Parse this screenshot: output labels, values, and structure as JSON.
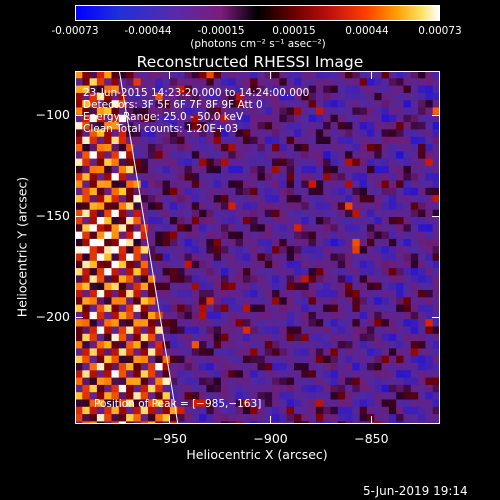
{
  "colorbar": {
    "tick_labels": [
      "-0.00073",
      "-0.00044",
      "-0.00015",
      "0.00015",
      "0.00044",
      "0.00073"
    ],
    "units": "(photons cm⁻² s⁻¹ asec⁻²)",
    "colors": [
      "#0000ff",
      "#7a1d7a",
      "#000000",
      "#c01010",
      "#ff9a00",
      "#ffffff"
    ]
  },
  "chart_data": {
    "type": "heatmap",
    "title": "Reconstructed RHESSI Image",
    "xlabel": "Heliocentric X (arcsec)",
    "ylabel": "Heliocentric Y (arcsec)",
    "xlim": [
      -997,
      -816
    ],
    "ylim": [
      -253,
      -78
    ],
    "x_ticks": [
      -950,
      -900,
      -850
    ],
    "y_ticks": [
      -100,
      -150,
      -200
    ],
    "x_tick_labels": [
      "−950",
      "−900",
      "−850"
    ],
    "y_tick_labels": [
      "−100",
      "−150",
      "−200"
    ],
    "value_range": [
      -0.00073,
      0.00073
    ],
    "limb_line": [
      [
        -975,
        -78
      ],
      [
        -946,
        -253
      ]
    ],
    "peak": [
      -985,
      -163
    ],
    "grid": false,
    "annotations": [
      "23-Jun-2015 14:23:20.000 to 14:24:00.000",
      "Detectors: 3F 5F 6F 7F 8F 9F  Att 0",
      "Energy Range: 25.0 - 50.0 keV",
      "Clean     Total counts: 1.20E+03"
    ],
    "peak_label": "Position of Peak = [−985,−163]"
  },
  "timestamp": "5-Jun-2019 19:14"
}
